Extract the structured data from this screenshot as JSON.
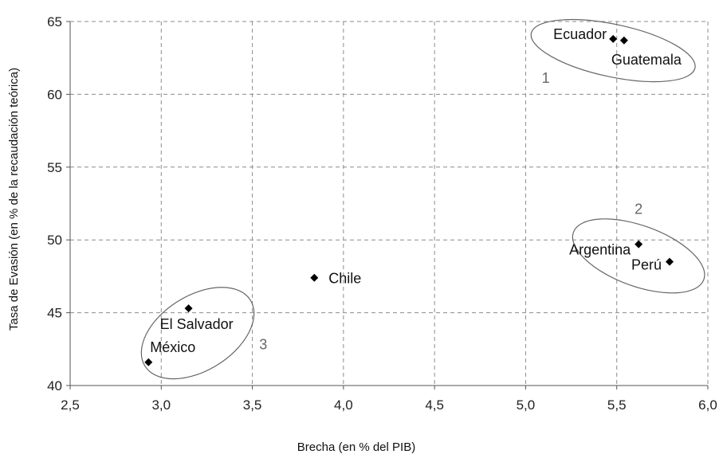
{
  "chart_data": {
    "type": "scatter",
    "xlabel": "Brecha (en % del PIB)",
    "ylabel": "Tasa de Evasión (en % de la recaudación teórica)",
    "xlim": [
      2.5,
      6.0
    ],
    "ylim": [
      40,
      65
    ],
    "x_ticks": [
      "2,5",
      "3,0",
      "3,5",
      "4,0",
      "4,5",
      "5,0",
      "5,5",
      "6,0"
    ],
    "y_ticks": [
      "40",
      "45",
      "50",
      "55",
      "60",
      "65"
    ],
    "grid": true,
    "grid_style": "dashed",
    "marker": "diamond",
    "marker_color": "#000000",
    "points": [
      {
        "label": "Ecuador",
        "x": 5.48,
        "y": 63.8
      },
      {
        "label": "Guatemala",
        "x": 5.54,
        "y": 63.7
      },
      {
        "label": "Argentina",
        "x": 5.62,
        "y": 49.7
      },
      {
        "label": "Perú",
        "x": 5.79,
        "y": 48.5
      },
      {
        "label": "Chile",
        "x": 3.84,
        "y": 47.4
      },
      {
        "label": "El Salvador",
        "x": 3.15,
        "y": 45.3
      },
      {
        "label": "México",
        "x": 2.93,
        "y": 41.6
      }
    ],
    "clusters": [
      {
        "label": "1",
        "members": [
          "Ecuador",
          "Guatemala"
        ]
      },
      {
        "label": "2",
        "members": [
          "Argentina",
          "Perú"
        ]
      },
      {
        "label": "3",
        "members": [
          "El Salvador",
          "México"
        ]
      }
    ]
  }
}
